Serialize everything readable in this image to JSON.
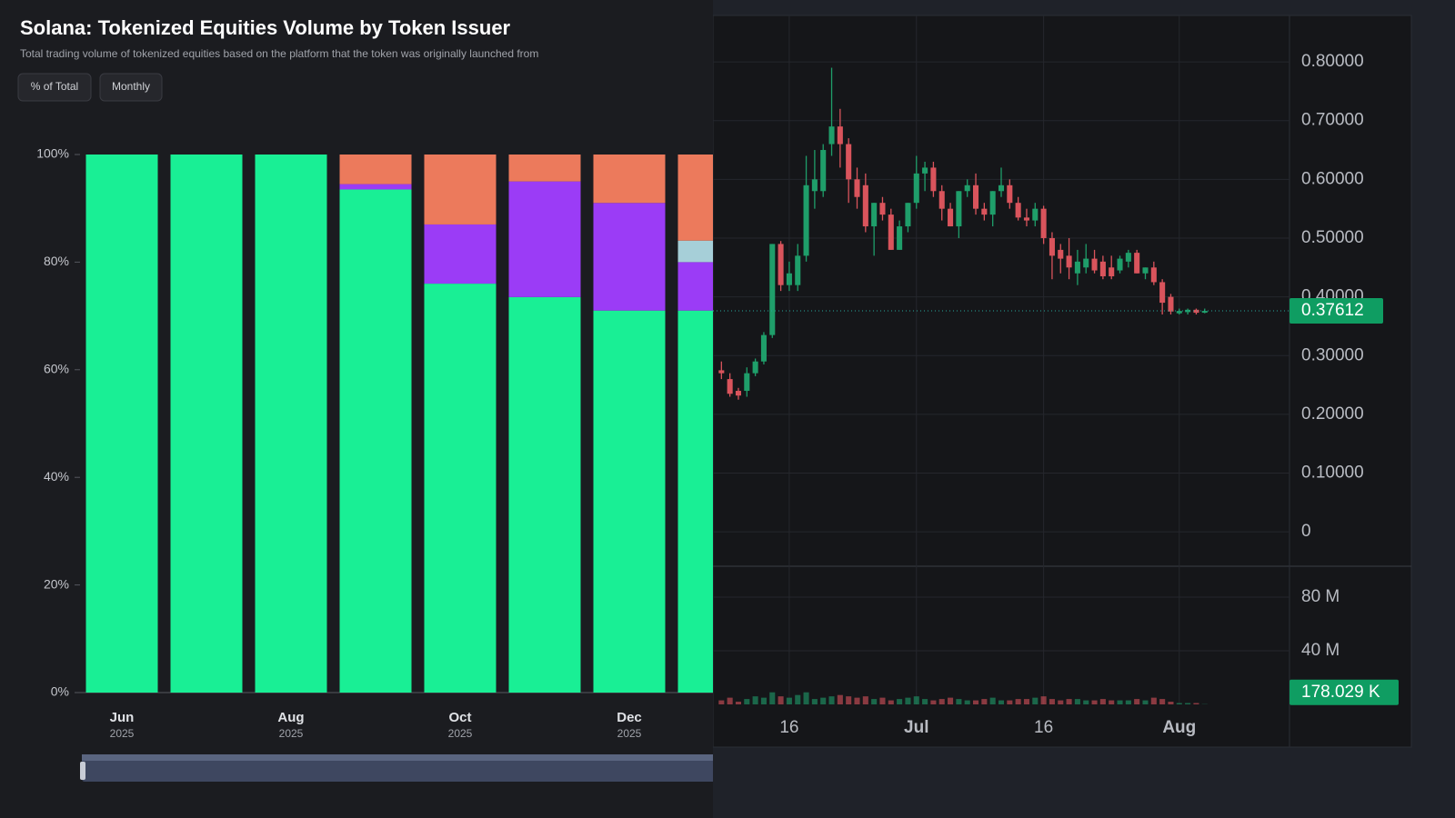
{
  "chart_data": [
    {
      "type": "stacked_bar",
      "title": "Solana: Tokenized Equities Volume by Token Issuer",
      "subtitle": "Total trading volume of tokenized equities based on the platform that the token was originally launched from",
      "buttons": [
        "% of Total",
        "Monthly"
      ],
      "categories": [
        [
          "Jun",
          "2025"
        ],
        null,
        [
          "Aug",
          "2025"
        ],
        null,
        [
          "Oct",
          "2025"
        ],
        null,
        [
          "Dec",
          "2025"
        ],
        null
      ],
      "series": [
        {
          "color": "#19ef95",
          "values": [
            100,
            100,
            100,
            93.5,
            76,
            73.5,
            71,
            71
          ]
        },
        {
          "color": "#9b3cf6",
          "values": [
            0,
            0,
            0,
            1,
            11,
            21.5,
            20,
            9
          ]
        },
        {
          "color": "#a6cfd8",
          "values": [
            0,
            0,
            0,
            0,
            0,
            0,
            0,
            4
          ]
        },
        {
          "color": "#ec7a5c",
          "values": [
            0,
            0,
            0,
            5.5,
            13,
            5,
            9,
            16
          ]
        }
      ],
      "ylim": [
        0,
        100
      ],
      "yticks": [
        {
          "value": 0,
          "label": "0%"
        },
        {
          "value": 20,
          "label": "20%"
        },
        {
          "value": 40,
          "label": "40%"
        },
        {
          "value": 60,
          "label": "60%"
        },
        {
          "value": 80,
          "label": "80%"
        },
        {
          "value": 100,
          "label": "100%"
        }
      ]
    },
    {
      "type": "candlestick",
      "x": [
        "06-08",
        "06-09",
        "06-10",
        "06-11",
        "06-12",
        "06-13",
        "06-14",
        "06-15",
        "06-16",
        "06-17",
        "06-18",
        "06-19",
        "06-20",
        "06-21",
        "06-22",
        "06-23",
        "06-24",
        "06-25",
        "06-26",
        "06-27",
        "06-28",
        "06-29",
        "06-30",
        "07-01",
        "07-02",
        "07-03",
        "07-04",
        "07-05",
        "07-06",
        "07-07",
        "07-08",
        "07-09",
        "07-10",
        "07-11",
        "07-12",
        "07-13",
        "07-14",
        "07-15",
        "07-16",
        "07-17",
        "07-18",
        "07-19",
        "07-20",
        "07-21",
        "07-22",
        "07-23",
        "07-24",
        "07-25",
        "07-26",
        "07-27",
        "07-28",
        "07-29",
        "07-30",
        "07-31",
        "08-01",
        "08-02",
        "08-03",
        "08-04"
      ],
      "open": [
        0.275,
        0.26,
        0.24,
        0.24,
        0.27,
        0.29,
        0.335,
        0.49,
        0.42,
        0.42,
        0.47,
        0.58,
        0.58,
        0.66,
        0.69,
        0.66,
        0.6,
        0.59,
        0.52,
        0.56,
        0.54,
        0.48,
        0.52,
        0.56,
        0.61,
        0.62,
        0.58,
        0.55,
        0.52,
        0.58,
        0.59,
        0.55,
        0.54,
        0.58,
        0.59,
        0.56,
        0.535,
        0.53,
        0.55,
        0.5,
        0.48,
        0.47,
        0.44,
        0.45,
        0.465,
        0.46,
        0.45,
        0.445,
        0.46,
        0.475,
        0.44,
        0.45,
        0.425,
        0.4,
        0.372,
        0.374,
        0.378,
        0.373
      ],
      "high": [
        0.29,
        0.27,
        0.245,
        0.28,
        0.295,
        0.34,
        0.49,
        0.495,
        0.46,
        0.49,
        0.64,
        0.65,
        0.66,
        0.79,
        0.72,
        0.67,
        0.62,
        0.61,
        0.56,
        0.57,
        0.55,
        0.53,
        0.56,
        0.64,
        0.63,
        0.63,
        0.59,
        0.56,
        0.58,
        0.6,
        0.61,
        0.56,
        0.58,
        0.62,
        0.6,
        0.57,
        0.55,
        0.56,
        0.555,
        0.51,
        0.49,
        0.5,
        0.48,
        0.49,
        0.48,
        0.47,
        0.47,
        0.47,
        0.48,
        0.48,
        0.45,
        0.46,
        0.43,
        0.405,
        0.38,
        0.38,
        0.38,
        0.38
      ],
      "low": [
        0.26,
        0.23,
        0.225,
        0.23,
        0.265,
        0.285,
        0.33,
        0.41,
        0.41,
        0.41,
        0.46,
        0.55,
        0.57,
        0.64,
        0.62,
        0.56,
        0.55,
        0.51,
        0.47,
        0.53,
        0.48,
        0.48,
        0.51,
        0.55,
        0.58,
        0.57,
        0.53,
        0.52,
        0.5,
        0.57,
        0.54,
        0.53,
        0.52,
        0.57,
        0.55,
        0.53,
        0.52,
        0.52,
        0.49,
        0.43,
        0.44,
        0.43,
        0.42,
        0.44,
        0.44,
        0.43,
        0.43,
        0.44,
        0.45,
        0.44,
        0.43,
        0.42,
        0.37,
        0.37,
        0.37,
        0.37,
        0.37,
        0.372
      ],
      "close": [
        0.27,
        0.235,
        0.232,
        0.27,
        0.29,
        0.335,
        0.49,
        0.42,
        0.44,
        0.47,
        0.59,
        0.6,
        0.65,
        0.69,
        0.66,
        0.6,
        0.57,
        0.52,
        0.56,
        0.54,
        0.48,
        0.52,
        0.56,
        0.61,
        0.62,
        0.58,
        0.55,
        0.52,
        0.58,
        0.59,
        0.55,
        0.54,
        0.58,
        0.59,
        0.56,
        0.535,
        0.53,
        0.55,
        0.5,
        0.47,
        0.465,
        0.45,
        0.46,
        0.465,
        0.445,
        0.435,
        0.435,
        0.465,
        0.475,
        0.44,
        0.45,
        0.425,
        0.39,
        0.375,
        0.376,
        0.378,
        0.373,
        0.37612
      ],
      "last_label": "0.37612",
      "up_color": "#1f9e6a",
      "down_color": "#d9545c",
      "xlim": [
        "06-07",
        "08-14"
      ],
      "xticks": [
        {
          "value": "06-16",
          "label": "16"
        },
        {
          "value": "07-01",
          "label": "Jul"
        },
        {
          "value": "07-16",
          "label": "16"
        },
        {
          "value": "08-01",
          "label": "Aug"
        }
      ],
      "ylim": [
        -0.057,
        0.879
      ],
      "yticks": [
        {
          "value": 0,
          "label": "0"
        },
        {
          "value": 0.1,
          "label": "0.10000"
        },
        {
          "value": 0.2,
          "label": "0.20000"
        },
        {
          "value": 0.3,
          "label": "0.30000"
        },
        {
          "value": 0.4,
          "label": "0.40000"
        },
        {
          "value": 0.5,
          "label": "0.50000"
        },
        {
          "value": 0.6,
          "label": "0.60000"
        },
        {
          "value": 0.7,
          "label": "0.70000"
        },
        {
          "value": 0.8,
          "label": "0.80000"
        }
      ],
      "volume": {
        "values": [
          3000000,
          5000000,
          2000000,
          4000000,
          6000000,
          5000000,
          9000000,
          6000000,
          5000000,
          7000000,
          9000000,
          4000000,
          5000000,
          6000000,
          7000000,
          6000000,
          5000000,
          6000000,
          4000000,
          5000000,
          3000000,
          4000000,
          5000000,
          6000000,
          4000000,
          3000000,
          4000000,
          5000000,
          4000000,
          3000000,
          3000000,
          4000000,
          5000000,
          3000000,
          3000000,
          4000000,
          4000000,
          5000000,
          6000000,
          4000000,
          3000000,
          4000000,
          4000000,
          3000000,
          3000000,
          4000000,
          3000000,
          3000000,
          3000000,
          4000000,
          3000000,
          5000000,
          4000000,
          2000000,
          1000000,
          1000000,
          1000000,
          178029
        ],
        "last_label": "178.029 K",
        "ylim": [
          0,
          101700000
        ],
        "yticks": [
          {
            "value": 40000000,
            "label": "40 M"
          },
          {
            "value": 80000000,
            "label": "80 M"
          }
        ]
      }
    }
  ]
}
